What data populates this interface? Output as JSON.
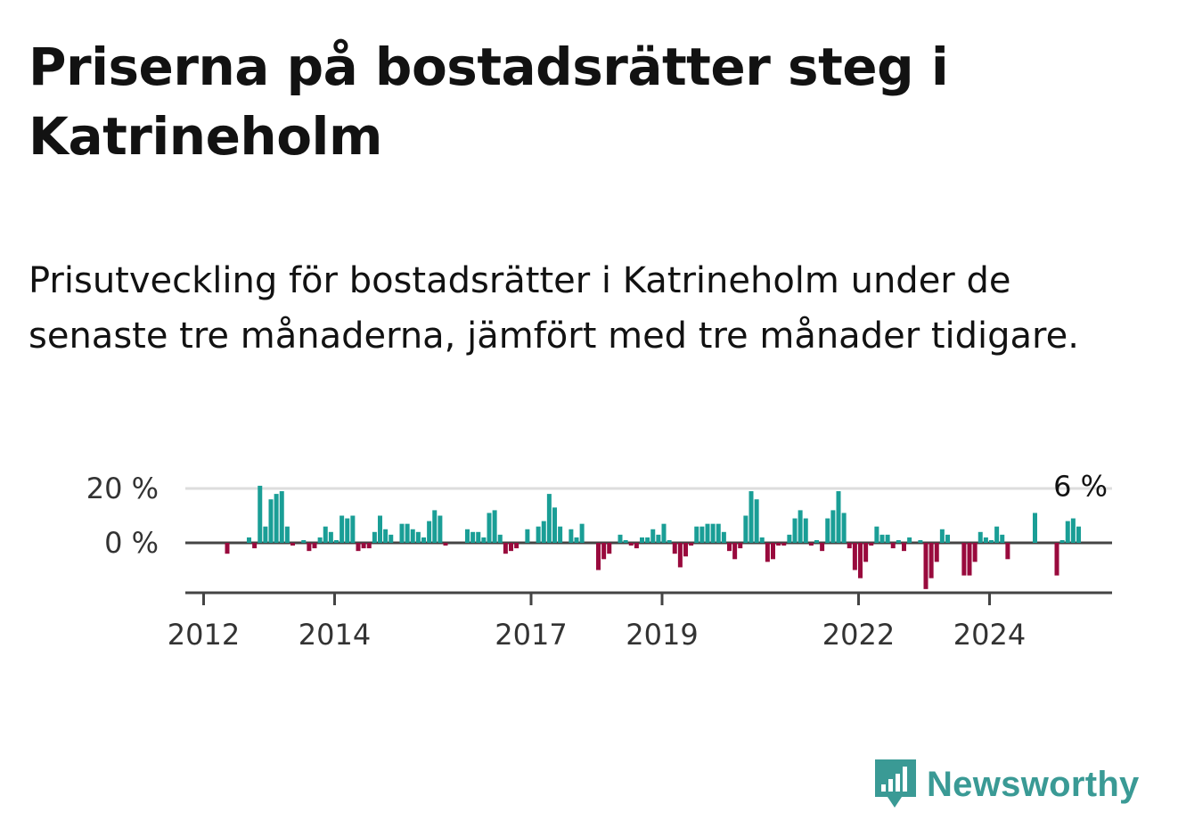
{
  "title": "Priserna på bostadsrätter steg i Katrineholm",
  "subtitle": "Prisutveckling för bostadsrätter i Katrineholm under de senaste tre månaderna, jämfört med tre månader tidigare.",
  "brand": {
    "name": "Newsworthy",
    "icon": "newsworthy-logo-icon"
  },
  "colors": {
    "positive": "#1a9e96",
    "negative": "#990a3d",
    "grid": "#dddddd",
    "axis": "#444444"
  },
  "chart_data": {
    "type": "bar",
    "title": "",
    "xlabel": "",
    "ylabel": "",
    "y_tick_labels": [
      "20 %",
      "0 %"
    ],
    "y_ticks": [
      20,
      0
    ],
    "x_tick_labels": [
      "2012",
      "2014",
      "2017",
      "2019",
      "2022",
      "2024"
    ],
    "x_ticks": [
      "2012-01",
      "2014-01",
      "2017-01",
      "2019-01",
      "2022-01",
      "2024-01"
    ],
    "start_month": "2012-01",
    "ylim": [
      -18,
      20
    ],
    "grid": true,
    "last_value_label": "6 %",
    "series": [
      {
        "values": [
          0,
          0,
          0,
          0,
          -4,
          0,
          0,
          0,
          2,
          -2,
          21,
          6,
          16,
          18,
          19,
          6,
          -1,
          0,
          1,
          -3,
          -2,
          2,
          6,
          4,
          1,
          10,
          9,
          10,
          -3,
          -2,
          -2,
          4,
          10,
          5,
          3,
          0,
          7,
          7,
          5,
          4,
          2,
          8,
          12,
          10,
          -1,
          0,
          0,
          0,
          5,
          4,
          4,
          2,
          11,
          12,
          3,
          -4,
          -3,
          -2,
          0,
          5,
          0,
          6,
          8,
          18,
          13,
          6,
          0,
          5,
          2,
          7,
          0,
          0,
          -10,
          -6,
          -4,
          0,
          3,
          1,
          -1,
          -2,
          2,
          2,
          5,
          3,
          7,
          1,
          -4,
          -9,
          -5,
          -1,
          6,
          6,
          7,
          7,
          7,
          4,
          -3,
          -6,
          -2,
          10,
          19,
          16,
          2,
          -7,
          -6,
          -1,
          -1,
          3,
          9,
          12,
          9,
          -1,
          1,
          -3,
          9,
          12,
          19,
          11,
          -2,
          -10,
          -13,
          -7,
          -1,
          6,
          3,
          3,
          -2,
          1,
          -3,
          2,
          0,
          1,
          -17,
          -13,
          -7,
          5,
          3,
          0,
          0,
          -12,
          -12,
          -7,
          4,
          2,
          1,
          6,
          3,
          -6,
          0,
          0,
          0,
          0,
          11,
          0,
          0,
          0,
          -12,
          1,
          8,
          9,
          6
        ]
      }
    ]
  }
}
